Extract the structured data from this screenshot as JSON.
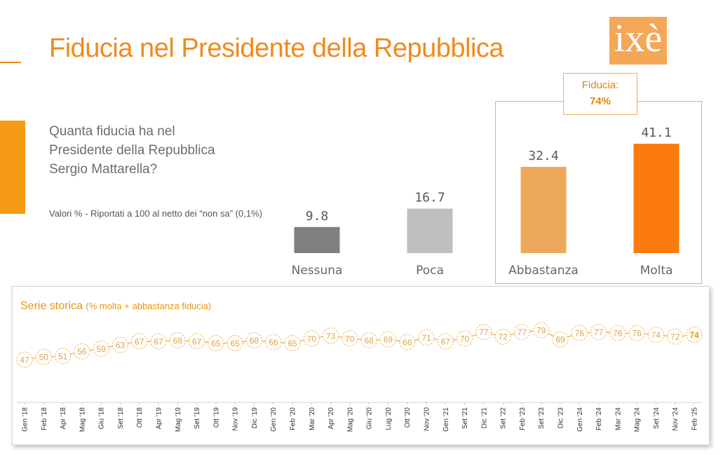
{
  "header": {
    "title": "Fiducia nel Presidente della Repubblica",
    "logo_text": "ixè"
  },
  "question": {
    "line1": "Quanta fiducia ha nel",
    "line2": "Presidente della Repubblica",
    "line3": "Sergio Mattarella?",
    "note": "Valori % - Riportati a 100 al netto dei “non sa” (0,1%)"
  },
  "fiducia_box": {
    "label": "Fiducia:",
    "value": "74%"
  },
  "history": {
    "title": "Serie storica",
    "subtitle": "(% molta + abbastanza fiducia)"
  },
  "colors": {
    "accent": "#f08a1c",
    "nessuna": "#7f7f7f",
    "poca": "#bfbfbf",
    "abbastanza": "#eda85c",
    "molta": "#fb7b10",
    "history_line": "#f2b55c"
  },
  "chart_data": [
    {
      "type": "bar",
      "categories": [
        "Nessuna",
        "Poca",
        "Abbastanza",
        "Molta"
      ],
      "values": [
        9.8,
        16.7,
        32.4,
        41.1
      ],
      "value_labels": [
        "9.8",
        "16.7",
        "32.4",
        "41.1"
      ],
      "title": "Fiducia nel Presidente della Repubblica",
      "ylim": [
        0,
        41.1
      ]
    },
    {
      "type": "line",
      "title": "Serie storica",
      "subtitle": "(% molta + abbastanza fiducia)",
      "x": [
        "Gen '18",
        "Feb '18",
        "Apr '18",
        "Mag '18",
        "Giu '18",
        "Set '18",
        "Ott '18",
        "Apr '19",
        "Mag '19",
        "Set '19",
        "Ott '19",
        "Nov '19",
        "Dic '19",
        "Gen '20",
        "Feb '20",
        "Mar '20",
        "Apr '20",
        "Mag '20",
        "Giu '20",
        "Lug '20",
        "Ott '20",
        "Nov '20",
        "Gen '21",
        "Set '21",
        "Dic '21",
        "Set '22",
        "Feb '23",
        "Set '23",
        "Dic '23",
        "Gen '24",
        "Feb '24",
        "Mar '24",
        "Mag '24",
        "Set '24",
        "Nov '24",
        "Feb '25"
      ],
      "y": [
        47,
        50,
        51,
        56,
        59,
        63,
        67,
        67,
        68,
        67,
        65,
        65,
        68,
        66,
        65,
        70,
        73,
        70,
        68,
        69,
        66,
        71,
        67,
        70,
        77,
        72,
        77,
        79,
        69,
        76,
        77,
        76,
        76,
        74,
        72,
        74
      ],
      "ylim": [
        40,
        85
      ]
    }
  ]
}
